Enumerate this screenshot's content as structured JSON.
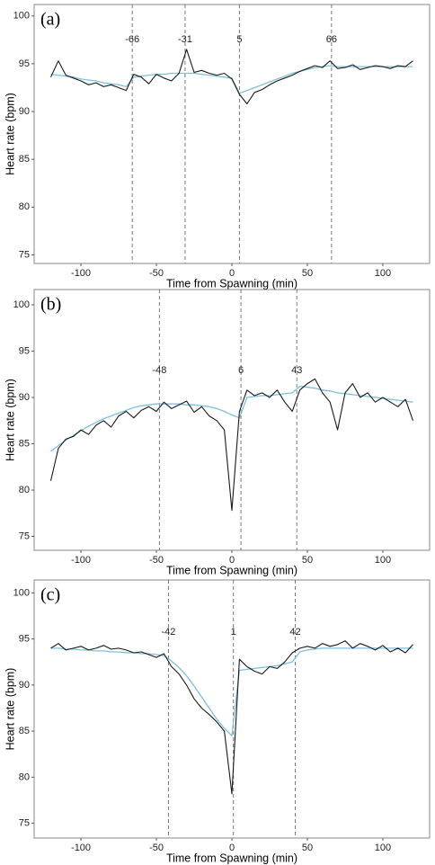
{
  "chart_data": [
    {
      "type": "line",
      "title": "(a)",
      "x_label": "Time from Spawning (min)",
      "y_label": "Heart rate (bpm)",
      "x": [
        -120,
        -115,
        -110,
        -105,
        -100,
        -95,
        -90,
        -85,
        -80,
        -75,
        -70,
        -65,
        -60,
        -55,
        -50,
        -45,
        -40,
        -35,
        -30,
        -25,
        -20,
        -15,
        -10,
        -5,
        0,
        5,
        10,
        15,
        20,
        25,
        30,
        35,
        40,
        45,
        50,
        55,
        60,
        65,
        70,
        75,
        80,
        85,
        90,
        95,
        100,
        105,
        110,
        115,
        120
      ],
      "series": [
        {
          "color": "#1a1a1a",
          "values": [
            93.6,
            95.3,
            93.8,
            93.5,
            93.2,
            92.8,
            93.0,
            92.6,
            92.8,
            92.5,
            92.2,
            93.9,
            93.6,
            92.9,
            93.9,
            93.5,
            93.2,
            94.0,
            96.5,
            94.1,
            94.3,
            94.0,
            93.8,
            94.0,
            93.4,
            91.8,
            90.8,
            92.0,
            92.3,
            92.8,
            93.2,
            93.5,
            93.8,
            94.2,
            94.5,
            94.8,
            94.6,
            95.3,
            94.5,
            94.6,
            94.9,
            94.4,
            94.6,
            94.8,
            94.7,
            94.5,
            94.8,
            94.7,
            95.3
          ]
        },
        {
          "color": "#7cc0dc",
          "values": [
            93.9,
            93.8,
            93.7,
            93.6,
            93.4,
            93.3,
            93.2,
            93.0,
            92.9,
            92.8,
            92.6,
            93.6,
            93.7,
            93.8,
            93.9,
            93.9,
            94.0,
            94.0,
            94.0,
            94.0,
            93.9,
            93.8,
            93.7,
            93.6,
            93.5,
            91.9,
            92.2,
            92.5,
            92.8,
            93.1,
            93.4,
            93.7,
            94.0,
            94.2,
            94.4,
            94.6,
            94.7,
            94.8,
            94.7,
            94.7,
            94.7,
            94.7,
            94.7,
            94.7,
            94.7,
            94.7,
            94.7,
            94.7,
            94.7
          ]
        }
      ],
      "vlines": [
        -66,
        -31,
        5,
        66
      ],
      "xlim": [
        -131,
        131
      ],
      "ylim": [
        74.1,
        101.2
      ],
      "xticks": [
        -100,
        -50,
        0,
        50,
        100
      ],
      "yticks": [
        75,
        80,
        85,
        90,
        95,
        100
      ],
      "grid": false
    },
    {
      "type": "line",
      "title": "(b)",
      "x_label": "Time from Spawning (min)",
      "y_label": "Heart rate (bpm)",
      "x": [
        -120,
        -115,
        -110,
        -105,
        -100,
        -95,
        -90,
        -85,
        -80,
        -75,
        -70,
        -65,
        -60,
        -55,
        -50,
        -45,
        -40,
        -35,
        -30,
        -25,
        -20,
        -15,
        -10,
        -5,
        0,
        5,
        10,
        15,
        20,
        25,
        30,
        35,
        40,
        45,
        50,
        55,
        60,
        65,
        70,
        75,
        80,
        85,
        90,
        95,
        100,
        105,
        110,
        115,
        120
      ],
      "series": [
        {
          "color": "#1a1a1a",
          "values": [
            81.0,
            84.5,
            85.5,
            85.8,
            86.5,
            86.0,
            87.0,
            87.5,
            86.8,
            88.0,
            88.5,
            87.8,
            88.6,
            89.0,
            88.5,
            89.5,
            88.8,
            89.2,
            89.6,
            88.4,
            89.0,
            88.0,
            87.5,
            86.5,
            77.8,
            88.5,
            90.8,
            90.2,
            90.5,
            90.0,
            90.8,
            89.5,
            88.5,
            90.8,
            91.5,
            92.0,
            90.5,
            89.5,
            86.5,
            90.5,
            91.5,
            90.0,
            90.5,
            89.5,
            90.0,
            89.5,
            89.0,
            89.8,
            87.5
          ]
        },
        {
          "color": "#7cc0dc",
          "values": [
            84.2,
            84.8,
            85.4,
            85.9,
            86.4,
            86.9,
            87.3,
            87.7,
            88.0,
            88.3,
            88.6,
            88.9,
            89.1,
            89.2,
            89.3,
            89.3,
            89.3,
            89.3,
            89.2,
            89.2,
            89.1,
            89.0,
            88.8,
            88.5,
            88.1,
            87.8,
            90.0,
            90.1,
            90.2,
            90.2,
            90.3,
            90.4,
            90.5,
            91.2,
            91.1,
            91.0,
            90.8,
            90.7,
            90.5,
            90.4,
            90.3,
            90.2,
            90.1,
            90.0,
            89.9,
            89.8,
            89.7,
            89.6,
            89.5
          ]
        }
      ],
      "vlines": [
        -48,
        6,
        43
      ],
      "xlim": [
        -131,
        131
      ],
      "ylim": [
        73.5,
        101.65
      ],
      "xticks": [
        -100,
        -50,
        0,
        50,
        100
      ],
      "yticks": [
        75,
        80,
        85,
        90,
        95,
        100
      ],
      "grid": false
    },
    {
      "type": "line",
      "title": "(c)",
      "x_label": "Time from Spawning (min)",
      "y_label": "Heart rate (bpm)",
      "x": [
        -120,
        -115,
        -110,
        -105,
        -100,
        -95,
        -90,
        -85,
        -80,
        -75,
        -70,
        -65,
        -60,
        -55,
        -50,
        -45,
        -40,
        -35,
        -30,
        -25,
        -20,
        -15,
        -10,
        -5,
        0,
        5,
        10,
        15,
        20,
        25,
        30,
        35,
        40,
        45,
        50,
        55,
        60,
        65,
        70,
        75,
        80,
        85,
        90,
        95,
        100,
        105,
        110,
        115,
        120
      ],
      "series": [
        {
          "color": "#1a1a1a",
          "values": [
            94.0,
            94.5,
            93.8,
            94.0,
            94.2,
            93.8,
            94.0,
            94.3,
            93.9,
            94.0,
            93.8,
            93.5,
            93.6,
            93.3,
            93.0,
            93.4,
            92.0,
            91.2,
            90.0,
            88.5,
            87.5,
            86.8,
            86.0,
            85.0,
            78.2,
            92.8,
            92.0,
            91.5,
            91.2,
            92.0,
            91.8,
            92.5,
            93.5,
            94.0,
            94.2,
            94.0,
            94.5,
            94.2,
            94.4,
            94.8,
            94.0,
            94.5,
            94.2,
            93.8,
            94.3,
            93.6,
            94.0,
            93.5,
            94.4
          ]
        },
        {
          "color": "#7cc0dc",
          "values": [
            94.0,
            94.0,
            93.9,
            93.9,
            93.8,
            93.8,
            93.7,
            93.7,
            93.6,
            93.6,
            93.5,
            93.5,
            93.4,
            93.4,
            93.3,
            93.2,
            92.6,
            91.9,
            91.0,
            89.9,
            88.7,
            87.5,
            86.3,
            85.3,
            84.5,
            91.6,
            91.7,
            91.8,
            91.9,
            92.0,
            92.1,
            92.3,
            92.5,
            93.6,
            93.8,
            93.9,
            94.0,
            94.0,
            94.0,
            94.0,
            94.0,
            94.0,
            94.0,
            94.0,
            94.0,
            94.0,
            94.0,
            94.0,
            94.0
          ]
        }
      ],
      "vlines": [
        -42,
        1,
        42
      ],
      "xlim": [
        -131,
        131
      ],
      "ylim": [
        73.4,
        101.4
      ],
      "xticks": [
        -100,
        -50,
        0,
        50,
        100
      ],
      "yticks": [
        75,
        80,
        85,
        90,
        95,
        100
      ],
      "grid": false
    }
  ]
}
